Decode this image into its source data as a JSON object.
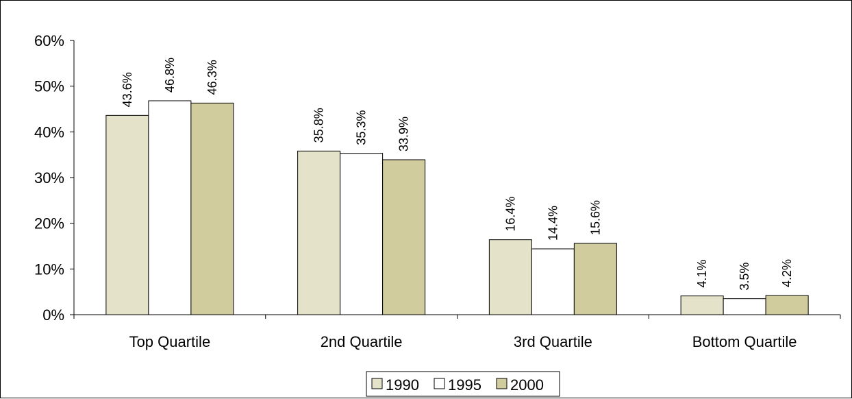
{
  "chart_data": {
    "type": "bar",
    "categories": [
      "Top Quartile",
      "2nd Quartile",
      "3rd Quartile",
      "Bottom Quartile"
    ],
    "series": [
      {
        "name": "1990",
        "values": [
          43.6,
          35.8,
          16.4,
          4.1
        ],
        "color": "#e4e2c8"
      },
      {
        "name": "1995",
        "values": [
          46.8,
          35.3,
          14.4,
          3.5
        ],
        "color": "#ffffff"
      },
      {
        "name": "2000",
        "values": [
          46.3,
          33.9,
          15.6,
          4.2
        ],
        "color": "#d1cc9e"
      }
    ],
    "data_labels": [
      [
        "43.6%",
        "35.8%",
        "16.4%",
        "4.1%"
      ],
      [
        "46.8%",
        "35.3%",
        "14.4%",
        "3.5%"
      ],
      [
        "46.3%",
        "33.9%",
        "15.6%",
        "4.2%"
      ]
    ],
    "yticks": [
      0,
      10,
      20,
      30,
      40,
      50,
      60
    ],
    "ytick_labels": [
      "0%",
      "10%",
      "20%",
      "30%",
      "40%",
      "50%",
      "60%"
    ],
    "ylim": [
      0,
      60
    ],
    "unit": "%",
    "grid": false,
    "legend_position": "bottom-center"
  }
}
